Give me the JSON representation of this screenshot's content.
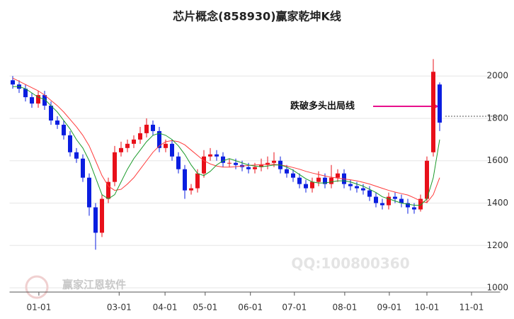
{
  "chart_data": {
    "type": "candlestick",
    "title": "芯片概念(858930)赢家乾坤K线",
    "x": [
      0,
      1,
      2,
      3,
      4,
      5,
      6,
      7,
      8,
      9,
      10,
      11,
      12,
      13,
      14,
      15,
      16,
      17,
      18,
      19,
      20,
      21,
      22,
      23,
      24,
      25,
      26,
      27,
      28,
      29,
      30,
      31,
      32,
      33,
      34,
      35,
      36,
      37,
      38,
      39,
      40,
      41,
      42,
      43,
      44,
      45,
      46,
      47,
      48,
      49,
      50,
      51,
      52,
      53,
      54,
      55,
      56,
      57,
      58,
      59,
      60,
      61,
      62,
      63,
      64,
      65,
      66,
      67
    ],
    "open": [
      1980,
      1960,
      1940,
      1900,
      1870,
      1910,
      1860,
      1790,
      1770,
      1720,
      1640,
      1610,
      1520,
      1380,
      1260,
      1420,
      1500,
      1640,
      1660,
      1680,
      1700,
      1730,
      1770,
      1740,
      1660,
      1680,
      1620,
      1560,
      1460,
      1470,
      1540,
      1620,
      1630,
      1620,
      1590,
      1590,
      1580,
      1570,
      1560,
      1570,
      1580,
      1590,
      1600,
      1560,
      1540,
      1520,
      1490,
      1470,
      1500,
      1520,
      1490,
      1520,
      1540,
      1490,
      1480,
      1470,
      1460,
      1430,
      1400,
      1390,
      1430,
      1420,
      1400,
      1380,
      1370,
      1420,
      1640,
      1960
    ],
    "high": [
      2000,
      1980,
      1960,
      1920,
      1930,
      1930,
      1880,
      1810,
      1790,
      1740,
      1660,
      1630,
      1540,
      1400,
      1440,
      1520,
      1670,
      1690,
      1700,
      1720,
      1760,
      1800,
      1790,
      1760,
      1700,
      1700,
      1640,
      1580,
      1490,
      1560,
      1650,
      1660,
      1650,
      1640,
      1610,
      1610,
      1600,
      1590,
      1590,
      1610,
      1620,
      1640,
      1620,
      1580,
      1560,
      1540,
      1510,
      1520,
      1550,
      1540,
      1580,
      1560,
      1560,
      1510,
      1500,
      1490,
      1480,
      1450,
      1420,
      1450,
      1450,
      1440,
      1420,
      1400,
      1440,
      1620,
      2080,
      1970
    ],
    "low": [
      1940,
      1920,
      1880,
      1850,
      1850,
      1840,
      1770,
      1750,
      1700,
      1620,
      1590,
      1500,
      1340,
      1180,
      1240,
      1400,
      1480,
      1620,
      1640,
      1660,
      1680,
      1710,
      1720,
      1640,
      1640,
      1600,
      1540,
      1420,
      1440,
      1450,
      1520,
      1600,
      1600,
      1570,
      1570,
      1560,
      1550,
      1540,
      1540,
      1550,
      1560,
      1570,
      1540,
      1520,
      1500,
      1470,
      1450,
      1450,
      1480,
      1470,
      1470,
      1500,
      1470,
      1460,
      1450,
      1440,
      1410,
      1380,
      1370,
      1370,
      1400,
      1380,
      1350,
      1350,
      1360,
      1400,
      1620,
      1740
    ],
    "close": [
      1960,
      1940,
      1900,
      1870,
      1910,
      1860,
      1790,
      1770,
      1720,
      1640,
      1610,
      1520,
      1380,
      1260,
      1420,
      1500,
      1640,
      1660,
      1680,
      1700,
      1730,
      1770,
      1740,
      1660,
      1680,
      1620,
      1560,
      1460,
      1470,
      1540,
      1620,
      1630,
      1620,
      1590,
      1590,
      1580,
      1570,
      1560,
      1570,
      1580,
      1590,
      1600,
      1560,
      1540,
      1520,
      1490,
      1470,
      1500,
      1520,
      1490,
      1520,
      1540,
      1490,
      1480,
      1470,
      1460,
      1430,
      1400,
      1390,
      1430,
      1420,
      1400,
      1380,
      1370,
      1420,
      1600,
      2020,
      1780
    ],
    "up_color": "#e8101a",
    "down_color": "#0a1ee0",
    "lines": [
      {
        "color": "#ff3b3b",
        "values": [
          1990,
          1975,
          1960,
          1945,
          1930,
          1910,
          1885,
          1860,
          1830,
          1795,
          1760,
          1720,
          1670,
          1600,
          1530,
          1480,
          1460,
          1465,
          1490,
          1520,
          1560,
          1600,
          1640,
          1670,
          1690,
          1695,
          1690,
          1675,
          1650,
          1625,
          1600,
          1585,
          1575,
          1570,
          1570,
          1572,
          1575,
          1578,
          1580,
          1582,
          1583,
          1583,
          1580,
          1575,
          1568,
          1560,
          1550,
          1542,
          1535,
          1528,
          1522,
          1518,
          1514,
          1510,
          1505,
          1498,
          1490,
          1480,
          1470,
          1460,
          1452,
          1445,
          1438,
          1425,
          1410,
          1402,
          1440,
          1520
        ]
      },
      {
        "color": "#1a9a2a",
        "values": [
          1950,
          1950,
          1940,
          1920,
          1900,
          1890,
          1860,
          1830,
          1790,
          1750,
          1700,
          1660,
          1600,
          1520,
          1440,
          1420,
          1440,
          1500,
          1560,
          1610,
          1650,
          1690,
          1720,
          1730,
          1720,
          1700,
          1670,
          1630,
          1580,
          1540,
          1530,
          1550,
          1580,
          1600,
          1610,
          1600,
          1590,
          1580,
          1575,
          1572,
          1575,
          1580,
          1580,
          1570,
          1555,
          1535,
          1515,
          1500,
          1495,
          1495,
          1500,
          1505,
          1505,
          1500,
          1490,
          1480,
          1465,
          1450,
          1430,
          1420,
          1410,
          1400,
          1395,
          1390,
          1390,
          1420,
          1520,
          1700
        ]
      }
    ],
    "reference_line": 1810,
    "annotation": "跌破多头出局线",
    "xlim": [
      -0.5,
      76.5
    ],
    "ylim": [
      980,
      2225
    ],
    "yticks": [
      1000,
      1200,
      1400,
      1600,
      1800,
      2000
    ],
    "xticks": [
      {
        "value": 4.1,
        "label": "01-01"
      },
      {
        "value": 16.7,
        "label": "03-01"
      },
      {
        "value": 23.9,
        "label": "04-01"
      },
      {
        "value": 30.2,
        "label": "05-01"
      },
      {
        "value": 37.3,
        "label": "06-01"
      },
      {
        "value": 44.2,
        "label": "07-01"
      },
      {
        "value": 52.1,
        "label": "08-01"
      },
      {
        "value": 59.1,
        "label": "09-01"
      },
      {
        "value": 65,
        "label": "10-01"
      },
      {
        "value": 72,
        "label": "11-01"
      }
    ],
    "grid": true
  },
  "watermarks": {
    "qq": "QQ:100800360",
    "logo": "赢家江恩软件"
  }
}
